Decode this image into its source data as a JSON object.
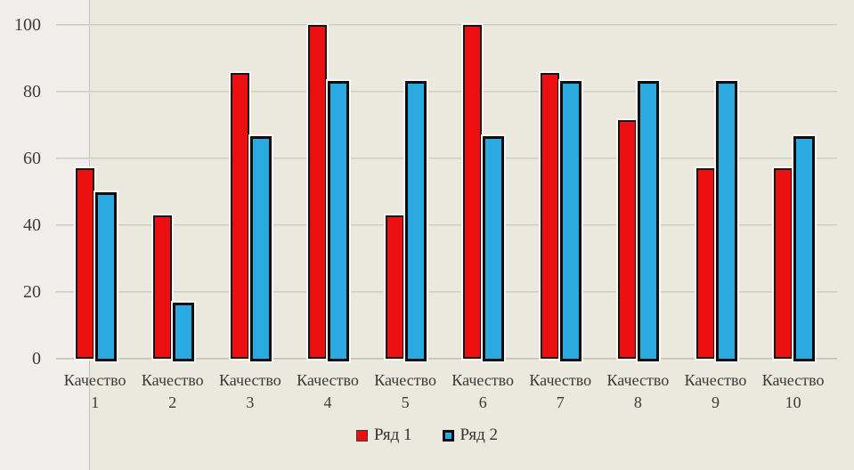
{
  "chart_data": {
    "type": "bar",
    "title": "",
    "categories": [
      "Качество 1",
      "Качество 2",
      "Качество 3",
      "Качество 4",
      "Качество 5",
      "Качество 6",
      "Качество 7",
      "Качество 8",
      "Качество 9",
      "Качество 10"
    ],
    "series": [
      {
        "name": "Ряд 1",
        "color": "#ec0f0f",
        "border_color": "#141414",
        "border_style": "thin-black",
        "values": [
          57.1,
          42.9,
          85.7,
          100,
          42.9,
          100,
          85.7,
          71.4,
          57.1,
          57.1
        ]
      },
      {
        "name": "Ряд 2",
        "color": "#2aaae1",
        "border_color": "#0c0c0c",
        "border_style": "thick-black",
        "values": [
          50,
          16.7,
          66.7,
          83.3,
          83.3,
          66.7,
          83.3,
          83.3,
          83.3,
          66.7
        ]
      }
    ],
    "xlabel": "",
    "ylabel": "",
    "ylim": [
      0,
      100
    ],
    "yticks": [
      "0",
      "20",
      "40",
      "60",
      "80",
      "100"
    ],
    "grid": "horizontal gridlines on",
    "legend_position": "bottom-center"
  },
  "colors": {
    "chart_background": "#ebe8dd",
    "axis_panel_background": "#f0efec",
    "gridline": "#ccc8bd",
    "axis_line": "#c6c2b9",
    "series1_fill": "#ec0f0f",
    "series2_fill": "#2aaae1",
    "bar_outline": "#0c0c0c",
    "bar_halo": "#faf9f4",
    "text": "#3a3936"
  },
  "legend": {
    "items": [
      "Ряд 1",
      "Ряд 2"
    ]
  }
}
